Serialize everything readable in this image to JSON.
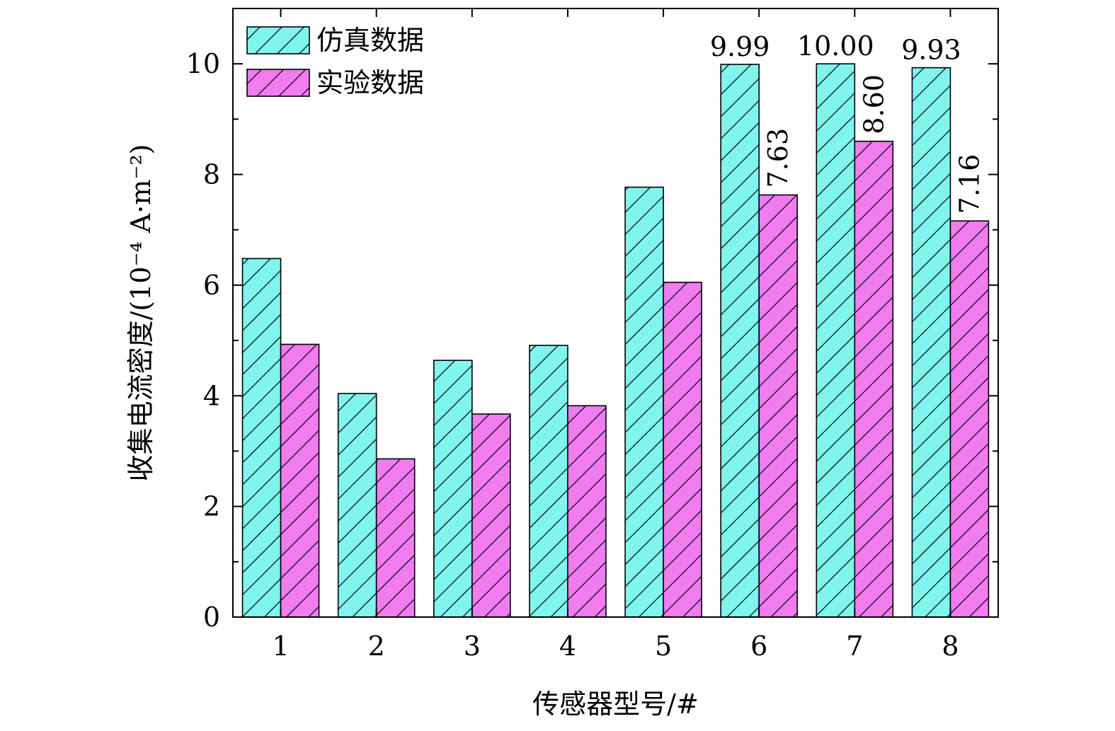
{
  "chart_data": {
    "type": "bar",
    "categories": [
      "1",
      "2",
      "3",
      "4",
      "5",
      "6",
      "7",
      "8"
    ],
    "series": [
      {
        "name": "仿真数据",
        "values": [
          6.48,
          4.04,
          4.64,
          4.91,
          7.77,
          9.99,
          10.0,
          9.93
        ],
        "color": "#7ff5ee"
      },
      {
        "name": "实验数据",
        "values": [
          4.93,
          2.86,
          3.67,
          3.82,
          6.05,
          7.63,
          8.6,
          7.16
        ],
        "color": "#f07cf0"
      }
    ],
    "xlabel": "传感器型号/#",
    "ylabel": "收集电流密度/(10⁻⁴ A·m⁻²)",
    "ylim": [
      0,
      11
    ],
    "yticks": [
      "0",
      "2",
      "4",
      "6",
      "8",
      "10"
    ],
    "data_labels": [
      {
        "series": 0,
        "index": 5,
        "text": "9.99"
      },
      {
        "series": 0,
        "index": 6,
        "text": "10.00"
      },
      {
        "series": 0,
        "index": 7,
        "text": "9.93"
      },
      {
        "series": 1,
        "index": 5,
        "text": "7.63"
      },
      {
        "series": 1,
        "index": 6,
        "text": "8.60"
      },
      {
        "series": 1,
        "index": 7,
        "text": "7.16"
      }
    ],
    "legend_position": "top-left",
    "grid": false,
    "bar_pattern": "diagonal-hatch"
  }
}
